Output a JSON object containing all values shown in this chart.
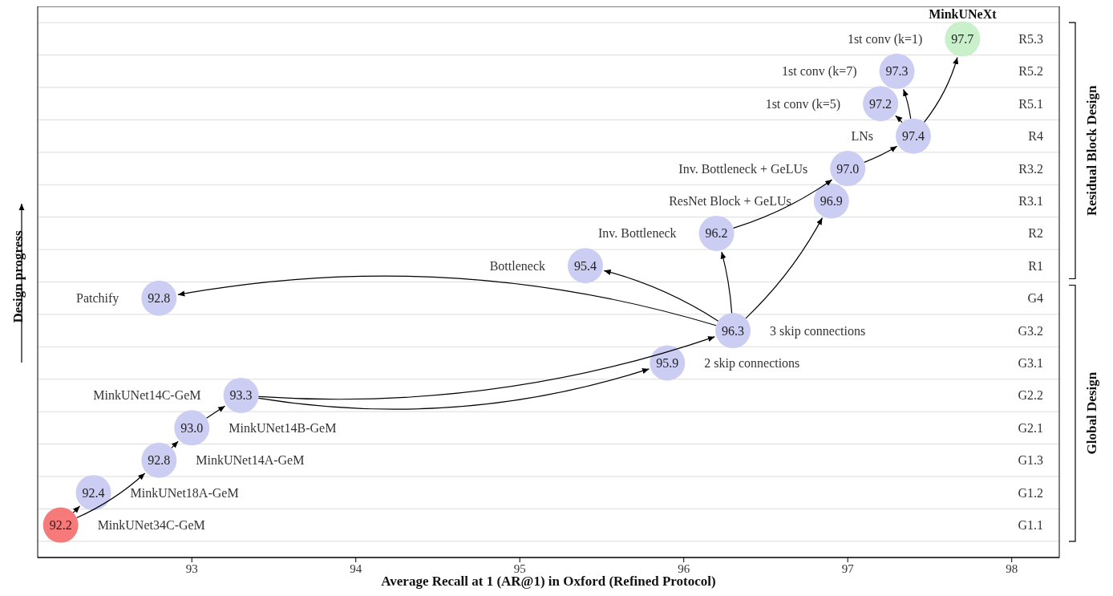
{
  "chart_data": {
    "type": "scatter",
    "orientation": "horizontal",
    "xlabel": "Average Recall at 1 (AR@1) in Oxford (Refined Protocol)",
    "ylabel": "Design progress",
    "categories": [
      "R5.3",
      "R5.2",
      "R5.1",
      "R4",
      "R3.2",
      "R3.1",
      "R2",
      "R1",
      "G4",
      "G3.2",
      "G3.1",
      "G2.2",
      "G2.1",
      "G1.3",
      "G1.2",
      "G1.1"
    ],
    "values": [
      97.7,
      97.3,
      97.2,
      97.4,
      97.0,
      96.9,
      96.2,
      95.4,
      92.8,
      96.3,
      95.9,
      93.3,
      93.0,
      92.8,
      92.4,
      92.2
    ],
    "value_labels": [
      "97.7",
      "97.3",
      "97.2",
      "97.4",
      "97.0",
      "96.9",
      "96.2",
      "95.4",
      "92.8",
      "96.3",
      "95.9",
      "93.3",
      "93.0",
      "92.8",
      "92.4",
      "92.2"
    ],
    "colors": [
      "#c9f0cb",
      "#cccdf2",
      "#cccdf2",
      "#cccdf2",
      "#cccdf2",
      "#cccdf2",
      "#cccdf2",
      "#cccdf2",
      "#cccdf2",
      "#cccdf2",
      "#cccdf2",
      "#cccdf2",
      "#cccdf2",
      "#cccdf2",
      "#cccdf2",
      "#f77a7a"
    ],
    "xlim": [
      92.06,
      98.29
    ],
    "xticks": [
      93,
      94,
      95,
      96,
      97,
      98
    ],
    "grid": "y",
    "legend": false,
    "annotations": [
      "MinkUNeXt",
      "1st conv (k=1)",
      "1st conv (k=7)",
      "1st conv (k=5)",
      "LNs",
      "Inv. Bottleneck + GeLUs",
      "ResNet Block + GeLUs",
      "Inv. Bottleneck",
      "Bottleneck",
      "Patchify",
      "3 skip connections",
      "2 skip connections",
      "MinkUNet14C-GeM",
      "MinkUNet14B-GeM",
      "MinkUNet14A-GeM",
      "MinkUNet18A-GeM",
      "MinkUNet34C-GeM",
      "Residual Block Design",
      "Global Design"
    ]
  }
}
